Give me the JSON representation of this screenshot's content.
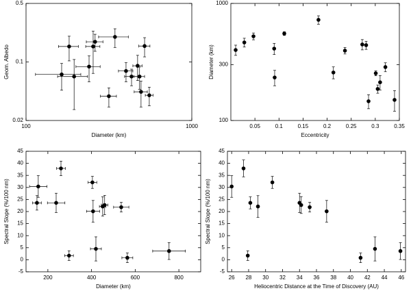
{
  "chart_data": [
    {
      "type": "scatter",
      "xlabel": "Diameter (km)",
      "ylabel": "Geom. Albedo",
      "xlog": true,
      "ylog": true,
      "xlim": [
        100,
        1000
      ],
      "ylim": [
        0.02,
        0.5
      ],
      "xticks": [
        100,
        1000
      ],
      "yticks": [
        0.02,
        0.1,
        0.5
      ],
      "color": "#000000",
      "x": [
        164,
        182,
        195,
        240,
        254,
        261,
        344,
        316,
        401,
        433,
        471,
        484,
        519,
        494,
        554
      ],
      "values": [
        0.071,
        0.153,
        0.067,
        0.088,
        0.153,
        0.174,
        0.199,
        0.039,
        0.078,
        0.067,
        0.09,
        0.067,
        0.155,
        0.044,
        0.04
      ],
      "xerr": [
        50,
        25,
        40,
        40,
        25,
        30,
        70,
        35,
        40,
        40,
        30,
        35,
        40,
        45,
        30
      ],
      "yerr": [
        0.025,
        0.05,
        0.04,
        0.03,
        0.08,
        0.04,
        0.05,
        0.01,
        0.02,
        0.015,
        0.03,
        0.02,
        0.04,
        0.015,
        0.01
      ]
    },
    {
      "type": "scatter",
      "xlabel": "Eccentricity",
      "ylabel": "Diameter (km)",
      "xlog": false,
      "ylog": true,
      "xlim": [
        0,
        0.35
      ],
      "ylim": [
        100,
        1000
      ],
      "xticks": [
        0.05,
        0.1,
        0.15,
        0.2,
        0.25,
        0.3,
        0.35
      ],
      "yticks": [
        100,
        300,
        1000
      ],
      "color": "#000000",
      "x": [
        0.01,
        0.028,
        0.047,
        0.09,
        0.091,
        0.111,
        0.182,
        0.213,
        0.237,
        0.273,
        0.281,
        0.286,
        0.301,
        0.305,
        0.31,
        0.321,
        0.34
      ],
      "values": [
        400,
        464,
        524,
        411,
        233,
        553,
        724,
        257,
        395,
        446,
        440,
        146,
        253,
        186,
        212,
        286,
        150
      ],
      "yerr": [
        40,
        40,
        35,
        45,
        35,
        20,
        60,
        30,
        25,
        45,
        35,
        20,
        12,
        15,
        30,
        25,
        30
      ]
    },
    {
      "type": "scatter",
      "xlabel": "Diameter (km)",
      "ylabel": "Spectral Slope (%/100 nm)",
      "xlog": false,
      "ylog": false,
      "xlim": [
        100,
        900
      ],
      "ylim": [
        -5,
        45
      ],
      "xticks": [
        200,
        400,
        600,
        800
      ],
      "yticks": [
        -5,
        0,
        5,
        10,
        15,
        20,
        25,
        30,
        35,
        40,
        45
      ],
      "color": "#000000",
      "x": [
        156,
        150,
        260,
        238,
        404,
        407,
        451,
        460,
        536,
        297,
        420,
        564,
        755
      ],
      "values": [
        30.4,
        23.6,
        37.9,
        23.6,
        32.1,
        20.1,
        22.1,
        22.7,
        21.8,
        1.7,
        4.5,
        0.8,
        3.6
      ],
      "xerr": [
        40,
        20,
        20,
        40,
        20,
        30,
        15,
        15,
        35,
        20,
        25,
        25,
        75
      ],
      "yerr": [
        4.5,
        3,
        3,
        4,
        2.5,
        4.5,
        4,
        4,
        2,
        2,
        5,
        2,
        3.5
      ]
    },
    {
      "type": "scatter",
      "xlabel": "Heliocentric Distance at the Time of Discovery (AU)",
      "ylabel": "Spectral Slope (%/100 nm)",
      "xlog": false,
      "ylog": false,
      "xlim": [
        25.5,
        46.5
      ],
      "ylim": [
        -5,
        45
      ],
      "xticks": [
        26,
        28,
        30,
        32,
        34,
        36,
        38,
        40,
        42,
        44,
        46
      ],
      "yticks": [
        -5,
        0,
        5,
        10,
        15,
        20,
        25,
        30,
        35,
        40,
        45
      ],
      "color": "#000000",
      "x": [
        26.0,
        27.4,
        27.9,
        28.2,
        29.1,
        30.8,
        34.0,
        34.2,
        35.2,
        37.2,
        41.2,
        42.9,
        45.9
      ],
      "values": [
        30.4,
        37.9,
        1.7,
        23.6,
        22.1,
        32.1,
        23.6,
        22.7,
        21.8,
        20.1,
        0.8,
        4.5,
        3.6
      ],
      "yerr": [
        4.5,
        3.5,
        2,
        2.5,
        4.5,
        2.5,
        4,
        3.5,
        2,
        4.5,
        2,
        5,
        3.5
      ]
    }
  ]
}
